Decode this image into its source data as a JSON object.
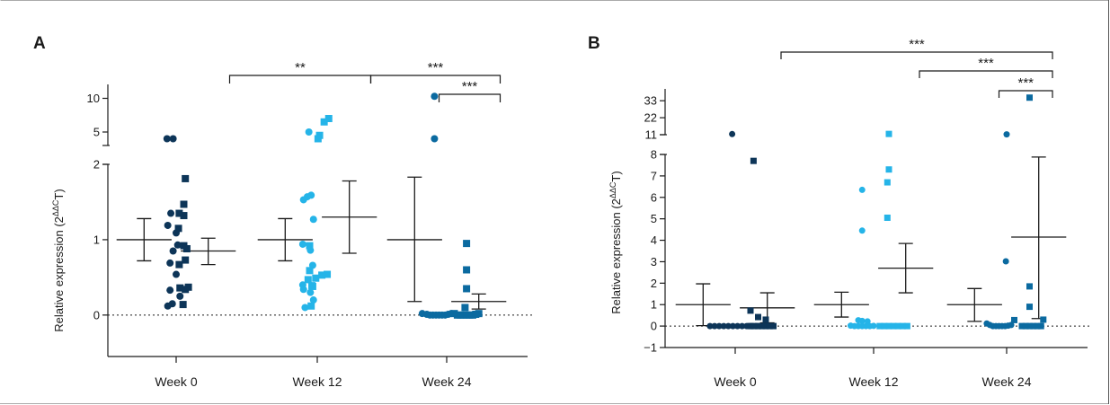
{
  "colors": {
    "week0_circle": "#0d3558",
    "week0_square": "#0d3558",
    "week12_circle": "#25b4e8",
    "week12_square": "#25b4e8",
    "week24_circle": "#0b6aa0",
    "week24_square": "#0b6aa0"
  },
  "chart_data": [
    {
      "panel_label": "A",
      "type": "scatter",
      "ylabel": "Relative expression (2",
      "ylabel_sup": "ΔΔC",
      "ylabel_tail": "T)",
      "categories": [
        "Week 0",
        "Week 12",
        "Week 24"
      ],
      "axis": {
        "segments": [
          {
            "range": [
              0,
              2
            ],
            "ticks": [
              0,
              1,
              2
            ]
          },
          {
            "range": [
              3,
              11
            ],
            "ticks": [
              5,
              10
            ]
          }
        ],
        "ymin": -0.55,
        "zero_line": true
      },
      "groups": [
        {
          "category": "Week 0",
          "marker": "circle",
          "color_key": "week0_circle",
          "points": [
            [
              -0.12,
              4
            ],
            [
              -0.04,
              4
            ],
            [
              -0.07,
              1.35
            ],
            [
              -0.11,
              1.19
            ],
            [
              0.0,
              1.09
            ],
            [
              0.02,
              0.93
            ],
            [
              -0.04,
              0.85
            ],
            [
              -0.08,
              0.69
            ],
            [
              0.0,
              0.54
            ],
            [
              -0.08,
              0.33
            ],
            [
              0.05,
              0.25
            ],
            [
              -0.05,
              0.15
            ],
            [
              -0.11,
              0.12
            ]
          ],
          "mean": 1.0,
          "err_low": 0.72,
          "err_high": 1.28
        },
        {
          "category": "Week 0",
          "marker": "square",
          "color_key": "week0_square",
          "points": [
            [
              0.12,
              1.81
            ],
            [
              0.1,
              1.47
            ],
            [
              0.04,
              1.35
            ],
            [
              0.1,
              1.32
            ],
            [
              0.03,
              1.15
            ],
            [
              0.1,
              0.92
            ],
            [
              0.14,
              0.88
            ],
            [
              0.12,
              0.73
            ],
            [
              0.04,
              0.67
            ],
            [
              0.05,
              0.36
            ],
            [
              0.12,
              0.34
            ],
            [
              0.16,
              0.37
            ],
            [
              0.09,
              0.14
            ]
          ],
          "mean": 0.85,
          "err_low": 0.67,
          "err_high": 1.02
        },
        {
          "category": "Week 12",
          "marker": "circle",
          "color_key": "week12_circle",
          "points": [
            [
              -0.11,
              5
            ],
            [
              -0.18,
              1.53
            ],
            [
              -0.13,
              1.57
            ],
            [
              -0.08,
              1.59
            ],
            [
              -0.05,
              1.27
            ],
            [
              -0.19,
              0.94
            ],
            [
              -0.09,
              0.86
            ],
            [
              -0.06,
              0.66
            ],
            [
              -0.19,
              0.4
            ],
            [
              -0.18,
              0.34
            ],
            [
              -0.09,
              0.3
            ],
            [
              -0.05,
              0.2
            ],
            [
              -0.16,
              0.1
            ]
          ],
          "mean": 1.0,
          "err_low": 0.72,
          "err_high": 1.28
        },
        {
          "category": "Week 12",
          "marker": "square",
          "color_key": "week12_square",
          "points": [
            [
              0.09,
              6.5
            ],
            [
              0.15,
              7.0
            ],
            [
              0.03,
              4.5
            ],
            [
              0.01,
              4.0
            ],
            [
              -0.1,
              0.92
            ],
            [
              -0.1,
              0.59
            ],
            [
              0.06,
              0.53
            ],
            [
              0.13,
              0.54
            ],
            [
              -0.02,
              0.49
            ],
            [
              -0.12,
              0.47
            ],
            [
              -0.07,
              0.39
            ],
            [
              -0.06,
              0.38
            ],
            [
              -0.08,
              0.12
            ]
          ],
          "mean": 1.3,
          "err_low": 0.82,
          "err_high": 1.78
        },
        {
          "category": "Week 24",
          "marker": "circle",
          "color_key": "week24_circle",
          "points": [
            [
              -0.16,
              10.3
            ],
            [
              -0.16,
              4.0
            ],
            [
              -0.32,
              0.02
            ],
            [
              -0.26,
              0.01
            ],
            [
              -0.22,
              0.0
            ],
            [
              -0.18,
              0.0
            ],
            [
              -0.14,
              0.0
            ],
            [
              -0.1,
              0.0
            ],
            [
              -0.06,
              0.0
            ],
            [
              -0.02,
              0.0
            ],
            [
              0.02,
              0.01
            ],
            [
              0.06,
              0.02
            ]
          ],
          "mean": 1.0,
          "err_low": 0.18,
          "err_high": 1.83
        },
        {
          "category": "Week 24",
          "marker": "square",
          "color_key": "week24_square",
          "points": [
            [
              0.26,
              0.95
            ],
            [
              0.26,
              0.6
            ],
            [
              0.26,
              0.35
            ],
            [
              0.24,
              0.1
            ],
            [
              0.1,
              0.02
            ],
            [
              0.14,
              0.0
            ],
            [
              0.18,
              0.0
            ],
            [
              0.22,
              0.0
            ],
            [
              0.26,
              0.0
            ],
            [
              0.3,
              0.0
            ],
            [
              0.34,
              0.0
            ],
            [
              0.38,
              0.01
            ],
            [
              0.42,
              0.02
            ]
          ],
          "mean": 0.18,
          "err_low": 0.08,
          "err_high": 0.28
        }
      ],
      "brackets": [
        {
          "from": "Week 0",
          "from_offset": 0.35,
          "to": "Week 12",
          "to_offset": 0.35,
          "level": 1,
          "label": "**"
        },
        {
          "from": "Week 12",
          "from_offset": 0.35,
          "to": "Week 24",
          "to_offset": 0.35,
          "level": 1,
          "label": "***"
        },
        {
          "from": "Week 24",
          "from_offset": -0.05,
          "to": "Week 24",
          "to_offset": 0.35,
          "level": 2,
          "label": "***"
        }
      ]
    },
    {
      "panel_label": "B",
      "type": "scatter",
      "ylabel": "Relative expression (2",
      "ylabel_sup": "ΔΔC",
      "ylabel_tail": "T)",
      "categories": [
        "Week 0",
        "Week 12",
        "Week 24"
      ],
      "axis": {
        "segments": [
          {
            "range": [
              -1,
              8
            ],
            "ticks": [
              -1,
              0,
              1,
              2,
              3,
              4,
              5,
              6,
              7,
              8
            ]
          },
          {
            "range": [
              8,
              36
            ],
            "ticks": [
              11,
              22,
              33
            ]
          }
        ],
        "ymin": -1,
        "zero_line": true
      },
      "groups": [
        {
          "category": "Week 0",
          "marker": "circle",
          "color_key": "week0_circle",
          "points": [
            [
              -0.04,
              11.4
            ],
            [
              -0.33,
              0
            ],
            [
              -0.27,
              0
            ],
            [
              -0.21,
              0
            ],
            [
              -0.15,
              0
            ],
            [
              -0.09,
              0
            ],
            [
              -0.03,
              0
            ],
            [
              0.03,
              0
            ],
            [
              0.09,
              0
            ],
            [
              0.15,
              0
            ],
            [
              0.2,
              0
            ]
          ],
          "mean": 1.0,
          "err_low": 0.02,
          "err_high": 1.97
        },
        {
          "category": "Week 0",
          "marker": "square",
          "color_key": "week0_square",
          "points": [
            [
              0.24,
              7.7
            ],
            [
              0.2,
              0.72
            ],
            [
              0.3,
              0.42
            ],
            [
              0.4,
              0.3
            ],
            [
              0.2,
              0.0
            ],
            [
              0.25,
              0.0
            ],
            [
              0.3,
              0.0
            ],
            [
              0.35,
              0.0
            ],
            [
              0.4,
              0.0
            ],
            [
              0.45,
              0.0
            ],
            [
              0.5,
              0.0
            ]
          ],
          "mean": 0.85,
          "err_low": 0.15,
          "err_high": 1.55
        },
        {
          "category": "Week 12",
          "marker": "circle",
          "color_key": "week12_circle",
          "points": [
            [
              -0.15,
              6.35
            ],
            [
              -0.15,
              4.45
            ],
            [
              -0.2,
              0.27
            ],
            [
              -0.15,
              0.24
            ],
            [
              -0.08,
              0.22
            ],
            [
              -0.3,
              0.02
            ],
            [
              -0.25,
              0.0
            ],
            [
              -0.2,
              0.0
            ],
            [
              -0.15,
              0.0
            ],
            [
              -0.1,
              0.0
            ],
            [
              -0.05,
              0.0
            ],
            [
              0.0,
              0.01
            ]
          ],
          "mean": 1.0,
          "err_low": 0.42,
          "err_high": 1.58
        },
        {
          "category": "Week 12",
          "marker": "square",
          "color_key": "week12_square",
          "points": [
            [
              0.2,
              11.5
            ],
            [
              0.2,
              7.3
            ],
            [
              0.18,
              6.7
            ],
            [
              0.18,
              5.05
            ],
            [
              0.08,
              0.0
            ],
            [
              0.14,
              0.0
            ],
            [
              0.2,
              0.0
            ],
            [
              0.26,
              0.0
            ],
            [
              0.32,
              0.0
            ],
            [
              0.38,
              0.0
            ],
            [
              0.44,
              0.0
            ]
          ],
          "mean": 2.7,
          "err_low": 1.55,
          "err_high": 3.85
        },
        {
          "category": "Week 24",
          "marker": "circle",
          "color_key": "week24_circle",
          "points": [
            [
              0.0,
              11.2
            ],
            [
              -0.01,
              3.02
            ],
            [
              -0.26,
              0.12
            ],
            [
              -0.22,
              0.05
            ],
            [
              -0.18,
              0.0
            ],
            [
              -0.14,
              0.0
            ],
            [
              -0.1,
              0.0
            ],
            [
              -0.06,
              0.0
            ],
            [
              -0.02,
              0.0
            ],
            [
              0.02,
              0.02
            ],
            [
              0.06,
              0.05
            ]
          ],
          "mean": 1.0,
          "err_low": 0.22,
          "err_high": 1.75
        },
        {
          "category": "Week 24",
          "marker": "square",
          "color_key": "week24_square",
          "points": [
            [
              0.3,
              35.0
            ],
            [
              0.3,
              1.85
            ],
            [
              0.3,
              0.9
            ],
            [
              0.1,
              0.28
            ],
            [
              0.48,
              0.3
            ],
            [
              0.2,
              0.0
            ],
            [
              0.25,
              0.0
            ],
            [
              0.3,
              0.0
            ],
            [
              0.35,
              0.0
            ],
            [
              0.4,
              0.0
            ],
            [
              0.45,
              0.0
            ]
          ],
          "mean": 4.15,
          "err_low": 0.35,
          "err_high": 7.88
        }
      ],
      "brackets": [
        {
          "from": "Week 0",
          "from_offset": 0.3,
          "to": "Week 24",
          "to_offset": 0.3,
          "level": 3,
          "label": "***"
        },
        {
          "from": "Week 12",
          "from_offset": 0.3,
          "to": "Week 24",
          "to_offset": 0.3,
          "level": 2,
          "label": "***"
        },
        {
          "from": "Week 24",
          "from_offset": -0.05,
          "to": "Week 24",
          "to_offset": 0.3,
          "level": 1,
          "label": "***"
        }
      ]
    }
  ]
}
